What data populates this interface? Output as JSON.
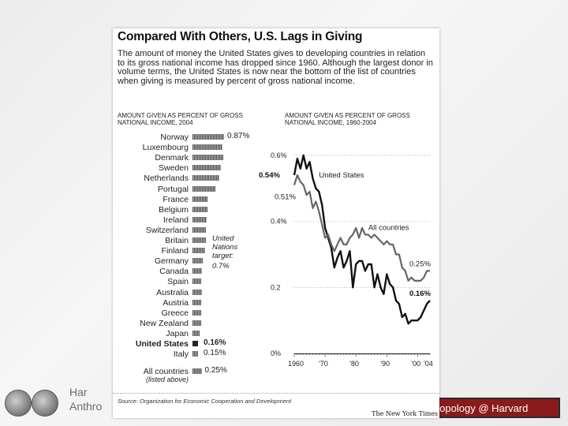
{
  "footer": {
    "left_line1": "Har",
    "left_line2": "Anthro",
    "right_text": "thropology @ Harvard"
  },
  "figure": {
    "title": "Compared With Others, U.S. Lags in Giving",
    "intro": "The amount of money the United States gives to developing countries in relation to its gross national income has dropped since 1960. Although the largest donor in volume terms, the United States is now near the bottom of the list of countries when giving is measured by percent of gross national income.",
    "source": "Source: Organization for Economic Cooperation and Development",
    "credit": "The New York Times"
  },
  "chart_data": [
    {
      "type": "bar",
      "orientation": "horizontal",
      "title": "AMOUNT GIVEN AS PERCENT OF GROSS NATIONAL INCOME, 2004",
      "categories": [
        "Norway",
        "Luxembourg",
        "Denmark",
        "Sweden",
        "Netherlands",
        "Portugal",
        "France",
        "Belgium",
        "Ireland",
        "Switzerland",
        "Britain",
        "Finland",
        "Germany",
        "Canada",
        "Spain",
        "Australia",
        "Austria",
        "Greece",
        "New Zealand",
        "Japan",
        "United States",
        "Italy",
        "All countries"
      ],
      "values": [
        0.87,
        0.83,
        0.84,
        0.78,
        0.74,
        0.63,
        0.42,
        0.41,
        0.39,
        0.37,
        0.36,
        0.35,
        0.28,
        0.27,
        0.24,
        0.25,
        0.23,
        0.23,
        0.23,
        0.19,
        0.16,
        0.15,
        0.25
      ],
      "value_labels": [
        {
          "category": "Norway",
          "text": "0.87%"
        },
        {
          "category": "United States",
          "text": "0.16%"
        },
        {
          "category": "Italy",
          "text": "0.15%"
        },
        {
          "category": "All countries",
          "text": "0.25%"
        }
      ],
      "highlight": "United States",
      "all_countries_note": "(listed above)",
      "annotation": {
        "text": "United Nations target:",
        "value_text": "0.7%",
        "value": 0.7
      }
    },
    {
      "type": "line",
      "title": "AMOUNT GIVEN AS PERCENT OF GROSS NATIONAL INCOME, 1960-2004",
      "x": [
        1960,
        1961,
        1962,
        1963,
        1964,
        1965,
        1966,
        1967,
        1968,
        1969,
        1970,
        1971,
        1972,
        1973,
        1974,
        1975,
        1976,
        1977,
        1978,
        1979,
        1980,
        1981,
        1982,
        1983,
        1984,
        1985,
        1986,
        1987,
        1988,
        1989,
        1990,
        1991,
        1992,
        1993,
        1994,
        1995,
        1996,
        1997,
        1998,
        1999,
        2000,
        2001,
        2002,
        2003,
        2004
      ],
      "series": [
        {
          "name": "United States",
          "values": [
            0.54,
            0.59,
            0.56,
            0.6,
            0.56,
            0.58,
            0.53,
            0.5,
            0.49,
            0.45,
            0.38,
            0.35,
            0.32,
            0.26,
            0.29,
            0.31,
            0.26,
            0.28,
            0.31,
            0.2,
            0.27,
            0.28,
            0.28,
            0.25,
            0.27,
            0.27,
            0.2,
            0.24,
            0.2,
            0.18,
            0.24,
            0.21,
            0.2,
            0.16,
            0.15,
            0.11,
            0.12,
            0.09,
            0.1,
            0.1,
            0.1,
            0.11,
            0.13,
            0.15,
            0.16
          ]
        },
        {
          "name": "All countries",
          "values": [
            0.51,
            0.54,
            0.52,
            0.51,
            0.48,
            0.49,
            0.44,
            0.46,
            0.43,
            0.39,
            0.35,
            0.36,
            0.33,
            0.31,
            0.33,
            0.35,
            0.33,
            0.33,
            0.35,
            0.36,
            0.38,
            0.35,
            0.38,
            0.36,
            0.36,
            0.35,
            0.36,
            0.35,
            0.34,
            0.33,
            0.34,
            0.33,
            0.33,
            0.3,
            0.3,
            0.26,
            0.25,
            0.22,
            0.23,
            0.22,
            0.22,
            0.22,
            0.23,
            0.25,
            0.25
          ]
        }
      ],
      "start_labels": [
        {
          "series": "United States",
          "text": "0.54%"
        },
        {
          "series": "All countries",
          "text": "0.51%"
        }
      ],
      "end_labels": [
        {
          "series": "All countries",
          "text": "0.25%"
        },
        {
          "series": "United States",
          "text": "0.16%"
        }
      ],
      "ylim": [
        0,
        0.65
      ],
      "yticks": [
        0,
        0.2,
        0.4,
        0.6
      ],
      "ytick_labels": [
        "0%",
        "0.2",
        "0.4%",
        "0.6%"
      ],
      "xtick_labels": [
        "1960",
        "'70",
        "'80",
        "'90",
        "'00",
        "'04"
      ]
    }
  ]
}
